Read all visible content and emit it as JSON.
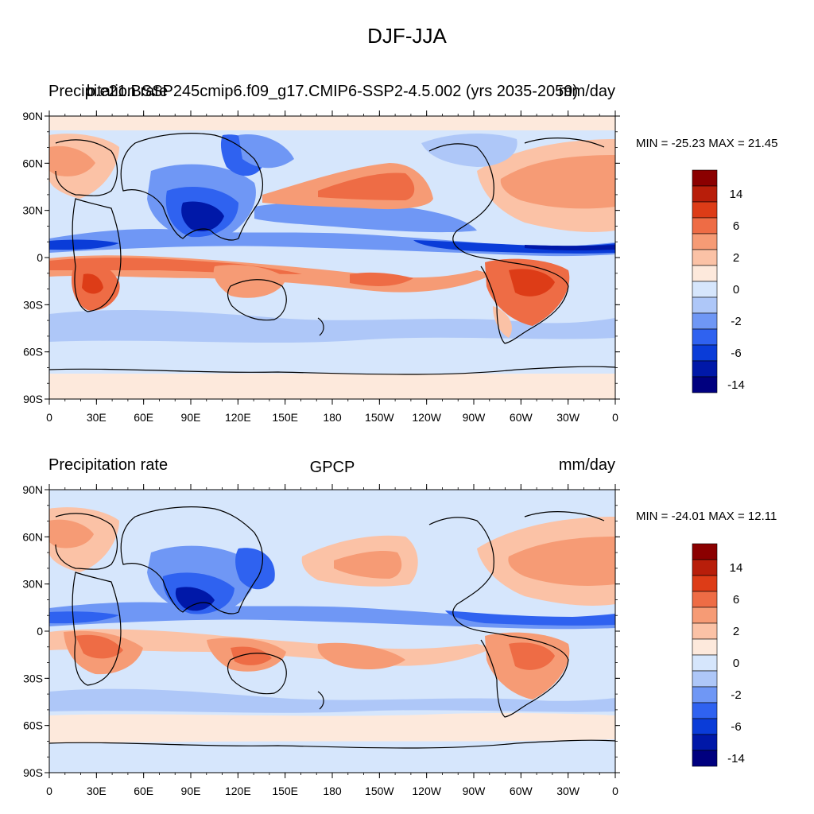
{
  "figure": {
    "title": "DJF-JJA"
  },
  "palette": {
    "levels": [
      "#00007f",
      "#0018a8",
      "#0a3cd8",
      "#2f62f0",
      "#6f97f5",
      "#aec7f8",
      "#d6e6fc",
      "#fde9dc",
      "#fbc2a6",
      "#f69b75",
      "#ee6c45",
      "#dd3c17",
      "#b81e0a",
      "#8b0000"
    ],
    "ocean_default": "#d6e6fc",
    "coast": "#000000"
  },
  "axes": {
    "lat_ticks": [
      "90N",
      "60N",
      "30N",
      "0",
      "30S",
      "60S",
      "90S"
    ],
    "lon_ticks": [
      "0",
      "30E",
      "60E",
      "90E",
      "120E",
      "150E",
      "180",
      "150W",
      "120W",
      "90W",
      "60W",
      "30W",
      "0"
    ]
  },
  "panels": [
    {
      "left_title": "Precipitation rate",
      "center_title": "b.e21.BSSP245cmip6.f09_g17.CMIP6-SSP2-4.5.002 (yrs 2035-2059)",
      "right_title": "mm/day",
      "minmax": "MIN = -25.23 MAX =  21.45",
      "colorbar_labels": [
        "14",
        "6",
        "2",
        "0",
        "-2",
        "-6",
        "-14"
      ]
    },
    {
      "left_title": "Precipitation rate",
      "center_title": "GPCP",
      "right_title": "mm/day",
      "minmax": "MIN = -24.01 MAX =  12.11",
      "colorbar_labels": [
        "14",
        "6",
        "2",
        "0",
        "-2",
        "-6",
        "-14"
      ]
    }
  ]
}
